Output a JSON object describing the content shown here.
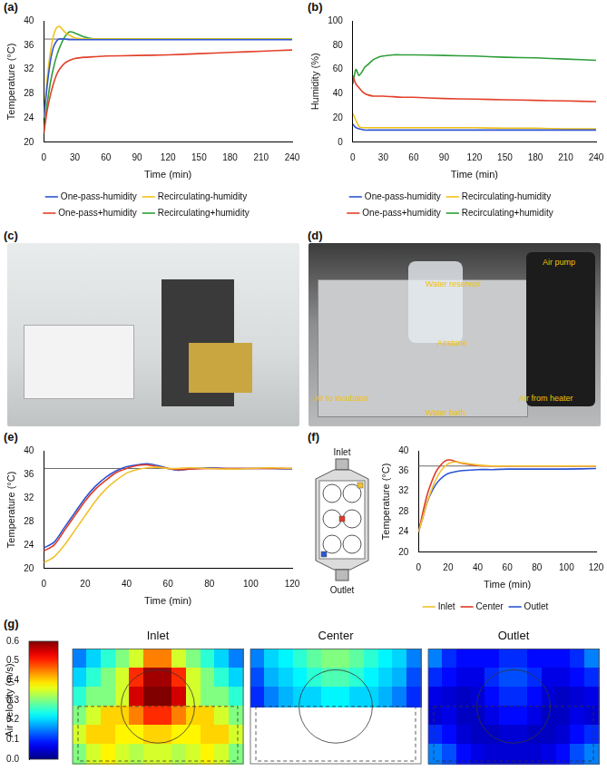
{
  "chart_data": [
    {
      "panel": "(a)",
      "type": "line",
      "x_label": "Time (min)",
      "y_label": "Temperature (°C)",
      "x": [
        0,
        3,
        6,
        9,
        12,
        15,
        20,
        25,
        30,
        40,
        50,
        60,
        90,
        120,
        150,
        180,
        210,
        240
      ],
      "xlim": [
        0,
        240
      ],
      "xticks": [
        0,
        30,
        60,
        90,
        120,
        150,
        180,
        210,
        240
      ],
      "ylim": [
        20,
        40
      ],
      "yticks": [
        20,
        24,
        28,
        32,
        36,
        40
      ],
      "grid": false,
      "legend": "bottom",
      "reference_lines": [
        37
      ],
      "series": [
        {
          "name": "One-pass-humidity",
          "color": "#2f55d4",
          "values": [
            24,
            29,
            33,
            35.5,
            36.6,
            37,
            37,
            36.9,
            36.9,
            36.9,
            36.9,
            36.9,
            36.9,
            36.9,
            36.9,
            36.9,
            36.9,
            36.9
          ]
        },
        {
          "name": "Recirculating-humidity",
          "color": "#f0c21b",
          "values": [
            24,
            30,
            34.5,
            37.3,
            38.8,
            39.1,
            38.2,
            37.6,
            37.2,
            37,
            37,
            37,
            37,
            37,
            37,
            37,
            37,
            37
          ]
        },
        {
          "name": "One-pass+humidity",
          "color": "#e3402a",
          "values": [
            21.5,
            25,
            27.5,
            29.5,
            31,
            32,
            33,
            33.5,
            33.8,
            34,
            34.1,
            34.2,
            34.3,
            34.4,
            34.6,
            34.8,
            35,
            35.2
          ]
        },
        {
          "name": "Recirculating+humidity",
          "color": "#2e9e3a",
          "values": [
            22,
            26,
            29.5,
            32,
            34,
            35.5,
            37.3,
            38.2,
            38,
            37.3,
            37,
            37,
            37,
            37,
            37,
            37,
            37,
            37
          ]
        }
      ]
    },
    {
      "panel": "(b)",
      "type": "line",
      "x_label": "Time (min)",
      "y_label": "Humidity (%)",
      "x": [
        0,
        3,
        6,
        9,
        12,
        15,
        20,
        25,
        30,
        40,
        50,
        60,
        90,
        120,
        150,
        180,
        210,
        240
      ],
      "xlim": [
        0,
        240
      ],
      "xticks": [
        0,
        30,
        60,
        90,
        120,
        150,
        180,
        210,
        240
      ],
      "ylim": [
        0,
        100
      ],
      "yticks": [
        0,
        20,
        40,
        60,
        80,
        100
      ],
      "grid": false,
      "legend": "bottom",
      "series": [
        {
          "name": "One-pass-humidity",
          "color": "#2f55d4",
          "values": [
            15,
            12,
            11,
            10.5,
            10,
            10,
            10,
            10,
            10,
            10,
            10,
            10,
            10,
            10,
            10,
            10,
            10,
            10
          ]
        },
        {
          "name": "Recirculating-humidity",
          "color": "#f0c21b",
          "values": [
            24,
            18,
            13,
            12,
            12,
            12,
            12,
            12,
            12,
            12,
            12,
            12,
            12,
            12,
            11.5,
            11.5,
            11,
            11
          ]
        },
        {
          "name": "One-pass+humidity",
          "color": "#e3402a",
          "values": [
            55,
            48,
            45,
            42,
            40,
            39,
            38,
            38,
            38,
            37.5,
            37,
            37,
            36,
            35.5,
            35,
            34.5,
            34,
            33.5
          ]
        },
        {
          "name": "Recirculating+humidity",
          "color": "#2e9e3a",
          "values": [
            48,
            60,
            55,
            58,
            62,
            64,
            68,
            70,
            71,
            72,
            72,
            72,
            71.5,
            71,
            70,
            69.5,
            68.5,
            67.5
          ]
        }
      ]
    },
    {
      "panel": "(e)",
      "type": "line",
      "x_label": "Time (min)",
      "y_label": "Temperature (°C)",
      "x": [
        0,
        5,
        10,
        15,
        20,
        25,
        30,
        35,
        40,
        45,
        50,
        55,
        60,
        65,
        70,
        80,
        90,
        100,
        110,
        120
      ],
      "xlim": [
        0,
        120
      ],
      "xticks": [
        0,
        20,
        40,
        60,
        80,
        100,
        120
      ],
      "ylim": [
        20,
        40
      ],
      "yticks": [
        20,
        24,
        28,
        32,
        36,
        40
      ],
      "grid": false,
      "reference_lines": [
        37
      ],
      "series": [
        {
          "name": "Inlet",
          "color": "#f2c12e",
          "values": [
            21,
            22,
            24,
            26.5,
            29,
            31.5,
            33.5,
            35,
            36.2,
            36.8,
            37.1,
            37.2,
            37,
            37,
            37.1,
            37,
            36.9,
            37,
            37.1,
            37
          ]
        },
        {
          "name": "Center",
          "color": "#e03a26",
          "values": [
            23,
            24,
            26.5,
            29,
            31.5,
            33.5,
            35,
            36.3,
            37,
            37.5,
            37.6,
            37.3,
            37,
            36.8,
            36.9,
            37,
            37,
            37,
            37,
            37
          ]
        },
        {
          "name": "Outlet",
          "color": "#2b55d4",
          "values": [
            23.5,
            24.5,
            27,
            29.5,
            32,
            34,
            35.5,
            36.6,
            37.3,
            37.6,
            37.8,
            37.5,
            37,
            36.7,
            36.9,
            37.1,
            37,
            37,
            37,
            36.9
          ]
        }
      ]
    },
    {
      "panel": "(f)",
      "type": "line",
      "x_label": "Time (min)",
      "y_label": "Temperature (°C)",
      "x": [
        0,
        3,
        6,
        9,
        12,
        15,
        18,
        21,
        25,
        30,
        40,
        50,
        60,
        80,
        100,
        120
      ],
      "xlim": [
        0,
        120
      ],
      "xticks": [
        0,
        20,
        40,
        60,
        80,
        100,
        120
      ],
      "ylim": [
        20,
        40
      ],
      "yticks": [
        20,
        24,
        28,
        32,
        36,
        40
      ],
      "grid": false,
      "legend": "bottom",
      "reference_lines": [
        37
      ],
      "series": [
        {
          "name": "Inlet",
          "color": "#f2c12e",
          "values": [
            24,
            27,
            30,
            32.5,
            34.5,
            36,
            37,
            37.6,
            37.8,
            37.6,
            37.2,
            37,
            37,
            37,
            37,
            37
          ]
        },
        {
          "name": "Center",
          "color": "#e03a26",
          "values": [
            24,
            28,
            31.5,
            34,
            36,
            37.2,
            38,
            38.2,
            37.9,
            37.5,
            37.1,
            37,
            37,
            37,
            37,
            37
          ]
        },
        {
          "name": "Outlet",
          "color": "#2b55d4",
          "values": [
            24,
            27,
            30,
            32,
            33.5,
            34.5,
            35.2,
            35.6,
            35.9,
            36.1,
            36.3,
            36.3,
            36.4,
            36.4,
            36.4,
            36.5
          ]
        }
      ]
    },
    {
      "panel": "(g)",
      "type": "heatmap",
      "colorbar": {
        "label": "Air velocity (m/s)",
        "range": [
          0,
          0.6
        ],
        "ticks": [
          {
            "value": 0,
            "label": "0.0"
          },
          {
            "value": 0.1,
            "label": "0.1"
          },
          {
            "value": 0.2,
            "label": "0.2"
          },
          {
            "value": 0.3,
            "label": "0.3"
          },
          {
            "value": 0.4,
            "label": "0.4"
          },
          {
            "value": 0.5,
            "label": "0.5"
          },
          {
            "value": 0.6,
            "label": "0.6"
          }
        ]
      },
      "maps": [
        {
          "title": "Inlet",
          "cells": [
            [
              0.15,
              0.2,
              0.25,
              0.3,
              0.35,
              0.45,
              0.45,
              0.35,
              0.3,
              0.25,
              0.2,
              0.15
            ],
            [
              0.2,
              0.25,
              0.3,
              0.35,
              0.5,
              0.58,
              0.58,
              0.5,
              0.35,
              0.3,
              0.25,
              0.2
            ],
            [
              0.25,
              0.3,
              0.3,
              0.35,
              0.55,
              0.6,
              0.6,
              0.55,
              0.35,
              0.3,
              0.3,
              0.25
            ],
            [
              0.3,
              0.35,
              0.4,
              0.4,
              0.45,
              0.5,
              0.5,
              0.45,
              0.4,
              0.4,
              0.35,
              0.3
            ],
            [
              0.35,
              0.4,
              0.4,
              0.38,
              0.38,
              0.4,
              0.4,
              0.38,
              0.38,
              0.4,
              0.4,
              0.35
            ],
            [
              0.3,
              0.35,
              0.38,
              0.35,
              0.33,
              0.35,
              0.35,
              0.33,
              0.35,
              0.38,
              0.35,
              0.3
            ]
          ]
        },
        {
          "title": "Center",
          "cells": [
            [
              0.15,
              0.2,
              0.22,
              0.25,
              0.28,
              0.3,
              0.3,
              0.28,
              0.25,
              0.22,
              0.2,
              0.15
            ],
            [
              0.12,
              0.18,
              0.2,
              0.22,
              0.25,
              0.27,
              0.27,
              0.25,
              0.22,
              0.2,
              0.18,
              0.12
            ],
            [
              0.1,
              0.15,
              0.18,
              0.2,
              0.2,
              0.22,
              0.22,
              0.2,
              0.2,
              0.18,
              0.15,
              0.1
            ],
            [
              null,
              null,
              null,
              null,
              null,
              null,
              null,
              null,
              null,
              null,
              null,
              null
            ],
            [
              null,
              null,
              null,
              null,
              null,
              null,
              null,
              null,
              null,
              null,
              null,
              null
            ],
            [
              null,
              null,
              null,
              null,
              null,
              null,
              null,
              null,
              null,
              null,
              null,
              null
            ]
          ]
        },
        {
          "title": "Outlet",
          "cells": [
            [
              0.15,
              0.1,
              0.08,
              0.08,
              0.08,
              0.1,
              0.1,
              0.08,
              0.08,
              0.08,
              0.1,
              0.15
            ],
            [
              0.1,
              0.08,
              0.06,
              0.06,
              0.1,
              0.12,
              0.12,
              0.1,
              0.06,
              0.06,
              0.08,
              0.1
            ],
            [
              0.06,
              0.05,
              0.04,
              0.05,
              0.08,
              0.1,
              0.1,
              0.08,
              0.05,
              0.04,
              0.05,
              0.06
            ],
            [
              0.05,
              0.06,
              0.04,
              0.04,
              0.06,
              0.08,
              0.08,
              0.06,
              0.04,
              0.04,
              0.06,
              0.05
            ],
            [
              0.1,
              0.08,
              0.05,
              0.04,
              0.04,
              0.05,
              0.05,
              0.04,
              0.04,
              0.05,
              0.08,
              0.1
            ],
            [
              0.15,
              0.12,
              0.08,
              0.06,
              0.05,
              0.05,
              0.05,
              0.05,
              0.06,
              0.08,
              0.12,
              0.15
            ]
          ]
        }
      ]
    }
  ],
  "photos": [
    {
      "panel": "(c)"
    },
    {
      "panel": "(d)",
      "labels": [
        "Water reservoir",
        "Airstone",
        "Air pump",
        "Air to incubator",
        "Water bath",
        "Air from heater"
      ]
    }
  ],
  "diagram": {
    "panel": "(f)",
    "labels": [
      "Inlet",
      "Outlet"
    ]
  }
}
